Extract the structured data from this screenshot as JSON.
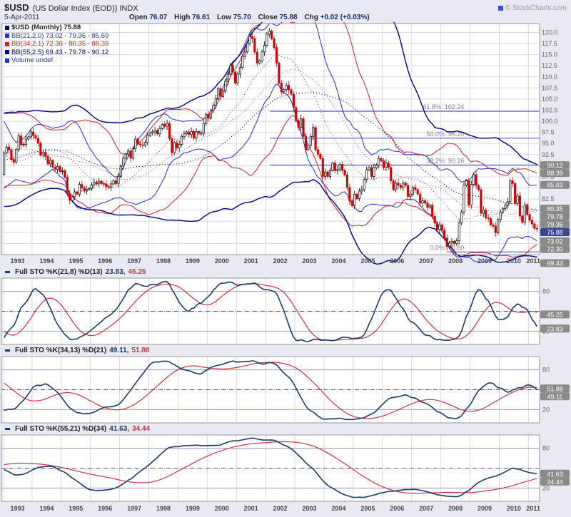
{
  "header": {
    "symbol": "$USD",
    "title_rest": "(US Dollar Index (EOD)) INDX",
    "copyright": "© StockCharts.com",
    "date": "5-Apr-2011",
    "quote": {
      "open_label": "Open",
      "open": "76.07",
      "high_label": "High",
      "high": "76.61",
      "low_label": "Low",
      "low": "75.70",
      "close_label": "Close",
      "close": "75.88",
      "chg_label": "Chg",
      "chg": "+0.02 (+0.03%)"
    }
  },
  "legend": {
    "main": "$USD (Monthly) 75.88",
    "bb21": "BB(21,2.0) 73.02 - 79.36 - 85.69",
    "bb34": "BB(34,2.1) 72.30 - 80.35 - 88.39",
    "bb55": "BB(55,2.5) 69.43 - 79.78 - 90.12",
    "volume": "Volume undef"
  },
  "sto_panels": [
    {
      "label": "Full STO %K(21,8) %D(13)",
      "k_value": "23.83,",
      "d_value": "45.25",
      "params": {
        "n": 21,
        "s": 8,
        "d": 13
      },
      "badges": [
        {
          "text": "45.25",
          "value": 45.25
        },
        {
          "text": "23.83",
          "value": 23.83
        }
      ]
    },
    {
      "label": "Full STO %K(34,13) %D(21)",
      "k_value": "49.11,",
      "d_value": "51.88",
      "params": {
        "n": 34,
        "s": 13,
        "d": 21
      },
      "badges": [
        {
          "text": "51.88",
          "value": 51.88
        },
        {
          "text": "49.11",
          "value": 49.11
        }
      ]
    },
    {
      "label": "Full STO %K(55,21) %D(34)",
      "k_value": "41.63,",
      "d_value": "34.44",
      "params": {
        "n": 55,
        "s": 21,
        "d": 34
      },
      "badges": [
        {
          "text": "41.63",
          "value": 41.63
        },
        {
          "text": "34.44",
          "value": 34.44
        }
      ]
    }
  ],
  "colors": {
    "up": "#000000",
    "down": "#cc0000",
    "bb21": "#2b2bd0",
    "bb34": "#cc2222",
    "bb55": "#000080",
    "fib": "#4444cc",
    "fib_label": "#808080",
    "sto_k": "#1a3a6b",
    "sto_d": "#cc3344",
    "badge": "#8a8a8a",
    "badge_highlight": "#3a4694",
    "grid": "#d7d7ea",
    "border": "#999999",
    "sto_level": "#9a9ac8",
    "volume_legend": "#2233cc",
    "text_dark": "#222222",
    "tick": "#666666",
    "year": "#444444"
  },
  "chart_data": {
    "type": "candlestick",
    "title": "$USD (US Dollar Index (EOD)) INDX",
    "timeframe": "Monthly",
    "last_close": 75.88,
    "ylim": [
      70,
      122
    ],
    "y_tick_step": 2.5,
    "y_ticks": [
      72.5,
      75.0,
      77.5,
      80.0,
      82.5,
      85.0,
      87.5,
      90.0,
      92.5,
      95.0,
      97.5,
      100.0,
      102.5,
      105.0,
      107.5,
      110.0,
      112.5,
      115.0,
      117.5,
      120.0
    ],
    "x_tick_years": [
      1993,
      1994,
      1995,
      1996,
      1997,
      1998,
      1999,
      2000,
      2001,
      2002,
      2003,
      2004,
      2005,
      2006,
      2007,
      2008,
      2009,
      2010,
      2011
    ],
    "monthly_close": [
      92.9,
      94.2,
      93.6,
      91.4,
      90.8,
      93.7,
      96.7,
      94.7,
      94.8,
      96.0,
      96.5,
      97.6,
      96.8,
      96.2,
      95.1,
      92.4,
      93.0,
      92.1,
      90.4,
      91.2,
      89.7,
      89.2,
      89.8,
      88.7,
      88.9,
      87.4,
      83.7,
      82.2,
      83.0,
      84.1,
      83.6,
      85.8,
      85.0,
      84.3,
      84.7,
      84.9,
      85.7,
      86.3,
      85.9,
      86.5,
      86.0,
      85.9,
      85.3,
      85.1,
      85.9,
      86.6,
      86.0,
      87.6,
      89.9,
      91.7,
      92.6,
      93.3,
      91.7,
      93.8,
      96.0,
      94.9,
      94.7,
      94.6,
      95.3,
      96.8,
      97.4,
      97.6,
      97.9,
      97.2,
      98.3,
      99.3,
      98.9,
      99.5,
      96.1,
      92.9,
      95.2,
      94.0,
      94.8,
      96.6,
      97.2,
      97.6,
      97.0,
      97.7,
      96.2,
      97.7,
      97.3,
      97.4,
      99.5,
      101.5,
      100.7,
      102.4,
      103.6,
      105.1,
      107.3,
      105.6,
      106.9,
      109.0,
      110.6,
      112.6,
      111.1,
      108.6,
      110.6,
      112.1,
      114.6,
      115.6,
      117.6,
      119.1,
      118.6,
      115.6,
      113.1,
      113.6,
      115.6,
      117.1,
      119.6,
      120.3,
      118.6,
      116.6,
      113.1,
      108.6,
      106.6,
      107.1,
      108.1,
      107.1,
      106.1,
      103.1,
      100.1,
      98.6,
      100.6,
      96.6,
      93.6,
      94.6,
      96.6,
      98.6,
      93.6,
      92.6,
      91.6,
      87.6,
      88.6,
      87.6,
      88.9,
      90.6,
      88.9,
      89.1,
      90.3,
      89.0,
      87.9,
      85.1,
      82.1,
      81.0,
      83.6,
      82.6,
      84.3,
      84.6,
      86.9,
      89.1,
      89.6,
      87.6,
      89.6,
      90.1,
      91.6,
      91.1,
      89.6,
      90.6,
      89.6,
      86.6,
      84.6,
      86.1,
      85.6,
      85.1,
      86.1,
      85.6,
      83.1,
      83.6,
      85.1,
      84.6,
      83.6,
      81.6,
      82.1,
      81.6,
      80.6,
      81.1,
      78.6,
      77.1,
      75.6,
      76.7,
      75.5,
      73.7,
      71.8,
      72.6,
      73.0,
      72.5,
      73.1,
      77.1,
      79.6,
      85.6,
      86.6,
      81.2,
      85.8,
      88.0,
      85.5,
      84.6,
      79.3,
      80.0,
      78.3,
      78.1,
      76.7,
      76.4,
      74.9,
      77.9,
      79.5,
      80.4,
      81.1,
      81.9,
      86.6,
      86.0,
      81.5,
      83.2,
      78.7,
      77.3,
      81.2,
      79.0,
      77.7,
      76.9,
      75.9,
      75.88
    ],
    "overlays": {
      "bollinger": [
        {
          "period": 21,
          "mult": 2.0,
          "color": "#2b2bd0",
          "last_lower": 73.02,
          "last_mid": 79.36,
          "last_upper": 85.69
        },
        {
          "period": 34,
          "mult": 2.1,
          "color": "#cc2222",
          "last_lower": 72.3,
          "last_mid": 80.35,
          "last_upper": 88.39
        },
        {
          "period": 55,
          "mult": 2.5,
          "color": "#000080",
          "last_lower": 69.43,
          "last_mid": 79.78,
          "last_upper": 90.12
        }
      ],
      "fibonacci": [
        {
          "label": "61.8%: 102.24",
          "value": 102.24,
          "from_x": 2002.15
        },
        {
          "label": "50.0%: 96.20",
          "value": 96.2,
          "from_x": 2002.15
        },
        {
          "label": "38.2%: 90.16",
          "value": 90.16,
          "from_x": 2002.15
        },
        {
          "label": "0.0%: 70.60",
          "value": 70.6,
          "from_x": 2008.2
        }
      ]
    },
    "axis_badges": [
      {
        "text": "90.12",
        "value": 90.12,
        "style": "grey"
      },
      {
        "text": "88.39",
        "value": 88.39,
        "style": "grey"
      },
      {
        "text": "85.69",
        "value": 85.69,
        "style": "grey"
      },
      {
        "text": "80.35",
        "value": 80.35,
        "style": "grey"
      },
      {
        "text": "79.78",
        "value": 79.78,
        "style": "grey"
      },
      {
        "text": "79.36",
        "value": 79.36,
        "style": "grey"
      },
      {
        "text": "75.88",
        "value": 75.88,
        "style": "highlight"
      },
      {
        "text": "73.02",
        "value": 73.02,
        "style": "grey"
      },
      {
        "text": "72.30",
        "value": 72.3,
        "style": "grey"
      },
      {
        "text": "69.43",
        "value": 69.43,
        "style": "grey",
        "pin": "below"
      }
    ],
    "sto_axis": {
      "levels": [
        80,
        20
      ],
      "midline": 50,
      "ylim": [
        0,
        100
      ]
    }
  }
}
